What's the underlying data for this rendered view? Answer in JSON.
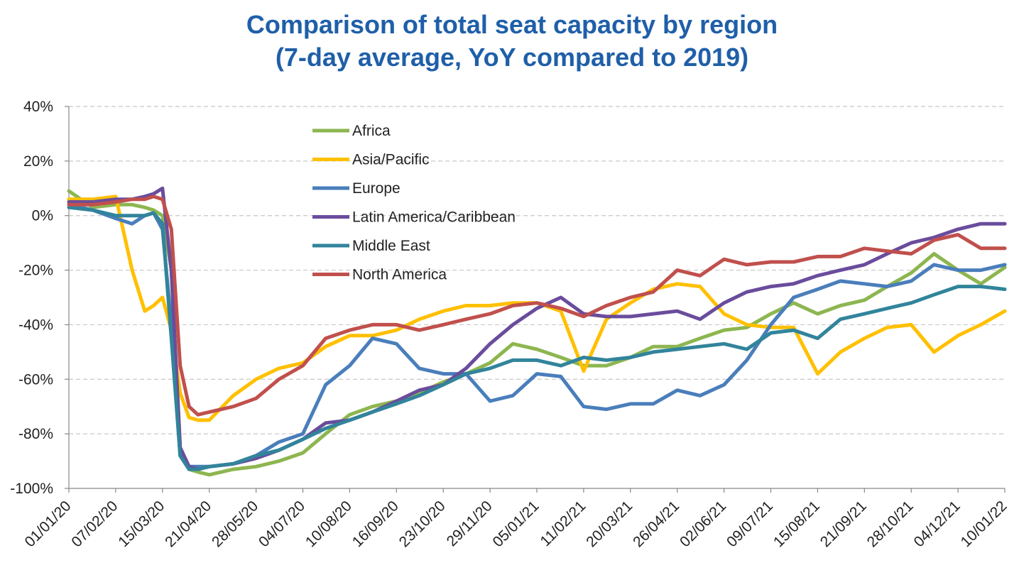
{
  "chart_data": {
    "type": "line",
    "title": "Comparison of total seat capacity by region",
    "subtitle": "(7-day average, YoY compared to 2019)",
    "xlabel": "",
    "ylabel": "",
    "ylim": [
      -100,
      40
    ],
    "y_ticks": [
      "40%",
      "20%",
      "0%",
      "-20%",
      "-40%",
      "-60%",
      "-80%",
      "-100%"
    ],
    "y_tick_values": [
      40,
      20,
      0,
      -20,
      -40,
      -60,
      -80,
      -100
    ],
    "x_tick_labels": [
      "01/01/20",
      "07/02/20",
      "15/03/20",
      "21/04/20",
      "28/05/20",
      "04/07/20",
      "10/08/20",
      "16/09/20",
      "23/10/20",
      "29/11/20",
      "05/01/21",
      "11/02/21",
      "20/03/21",
      "26/04/21",
      "02/06/21",
      "09/07/21",
      "15/08/21",
      "21/09/21",
      "28/10/21",
      "04/12/21",
      "10/01/22"
    ],
    "grid": "horizontal dashed",
    "legend_position": "top-left inside",
    "x": [
      "2020-01-01",
      "2020-01-20",
      "2020-02-07",
      "2020-02-20",
      "2020-03-01",
      "2020-03-08",
      "2020-03-15",
      "2020-03-22",
      "2020-03-29",
      "2020-04-05",
      "2020-04-12",
      "2020-04-21",
      "2020-05-10",
      "2020-05-28",
      "2020-06-15",
      "2020-07-04",
      "2020-07-22",
      "2020-08-10",
      "2020-08-28",
      "2020-09-16",
      "2020-10-04",
      "2020-10-23",
      "2020-11-10",
      "2020-11-29",
      "2020-12-17",
      "2021-01-05",
      "2021-01-24",
      "2021-02-11",
      "2021-03-01",
      "2021-03-20",
      "2021-04-07",
      "2021-04-26",
      "2021-05-14",
      "2021-06-02",
      "2021-06-20",
      "2021-07-09",
      "2021-07-27",
      "2021-08-15",
      "2021-09-02",
      "2021-09-21",
      "2021-10-09",
      "2021-10-28",
      "2021-11-15",
      "2021-12-04",
      "2021-12-22",
      "2022-01-10"
    ],
    "series": [
      {
        "name": "Africa",
        "color": "#8db650",
        "values": [
          9,
          3,
          4,
          4,
          3,
          2,
          0,
          -20,
          -85,
          -93,
          -94,
          -95,
          -93,
          -92,
          -90,
          -87,
          -80,
          -73,
          -70,
          -68,
          -65,
          -61,
          -58,
          -54,
          -47,
          -49,
          -52,
          -55,
          -55,
          -52,
          -48,
          -48,
          -45,
          -42,
          -41,
          -36,
          -32,
          -36,
          -33,
          -31,
          -26,
          -21,
          -14,
          -20,
          -25,
          -19
        ]
      },
      {
        "name": "Asia/Pacific",
        "color": "#ffc000",
        "values": [
          6,
          6,
          7,
          -20,
          -35,
          -33,
          -30,
          -42,
          -65,
          -74,
          -75,
          -75,
          -66,
          -60,
          -56,
          -54,
          -48,
          -44,
          -44,
          -42,
          -38,
          -35,
          -33,
          -33,
          -32,
          -32,
          -35,
          -57,
          -38,
          -32,
          -27,
          -25,
          -26,
          -36,
          -40,
          -41,
          -41,
          -58,
          -50,
          -45,
          -41,
          -40,
          -50,
          -44,
          -40,
          -35
        ]
      },
      {
        "name": "Europe",
        "color": "#4a7ebb",
        "values": [
          4,
          2,
          -1,
          -3,
          0,
          1,
          -5,
          -40,
          -88,
          -92,
          -92,
          -92,
          -91,
          -88,
          -83,
          -80,
          -62,
          -55,
          -45,
          -47,
          -56,
          -58,
          -58,
          -68,
          -66,
          -58,
          -59,
          -70,
          -71,
          -69,
          -69,
          -64,
          -66,
          -62,
          -53,
          -40,
          -30,
          -27,
          -24,
          -25,
          -26,
          -24,
          -18,
          -20,
          -20,
          -18
        ]
      },
      {
        "name": "Latin America/Caribbean",
        "color": "#6a4c9c",
        "values": [
          5,
          5,
          6,
          6,
          7,
          8,
          10,
          -20,
          -85,
          -92,
          -93,
          -92,
          -91,
          -89,
          -86,
          -82,
          -76,
          -75,
          -72,
          -68,
          -64,
          -62,
          -56,
          -47,
          -40,
          -34,
          -30,
          -36,
          -37,
          -37,
          -36,
          -35,
          -38,
          -32,
          -28,
          -26,
          -25,
          -22,
          -20,
          -18,
          -14,
          -10,
          -8,
          -5,
          -3,
          -3
        ]
      },
      {
        "name": "Middle East",
        "color": "#31849b",
        "values": [
          3,
          2,
          0,
          0,
          0,
          1,
          -3,
          -45,
          -88,
          -93,
          -93,
          -92,
          -91,
          -88,
          -86,
          -82,
          -78,
          -75,
          -72,
          -69,
          -66,
          -62,
          -58,
          -56,
          -53,
          -53,
          -55,
          -52,
          -53,
          -52,
          -50,
          -49,
          -48,
          -47,
          -49,
          -43,
          -42,
          -45,
          -38,
          -36,
          -34,
          -32,
          -29,
          -26,
          -26,
          -27
        ]
      },
      {
        "name": "North America",
        "color": "#c0504d",
        "values": [
          4,
          4,
          5,
          6,
          6,
          7,
          6,
          -5,
          -55,
          -70,
          -73,
          -72,
          -70,
          -67,
          -60,
          -55,
          -45,
          -42,
          -40,
          -40,
          -42,
          -40,
          -38,
          -36,
          -33,
          -32,
          -34,
          -37,
          -33,
          -30,
          -28,
          -20,
          -22,
          -16,
          -18,
          -17,
          -17,
          -15,
          -15,
          -12,
          -13,
          -14,
          -9,
          -7,
          -12,
          -12
        ]
      }
    ]
  }
}
